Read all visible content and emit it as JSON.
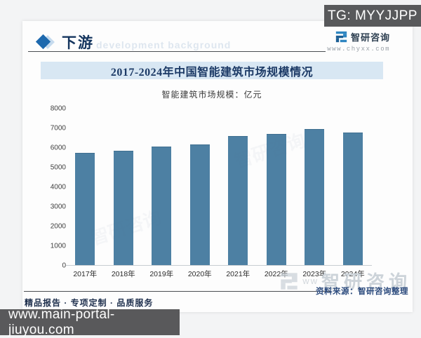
{
  "page": {
    "tg_badge": "TG: MYYJJPP",
    "url_overlay": "www.main-portal-jiuyou.com"
  },
  "header": {
    "section_title": "下游",
    "watermark_text": "development background"
  },
  "brand": {
    "name": "智研咨询",
    "website": "www.chyxx.com"
  },
  "chart_data": {
    "type": "bar",
    "title": "2017-2024年中国智能建筑市场规模情况",
    "legend": "智能建筑市场规模：亿元",
    "unit": "亿元",
    "categories": [
      "2017年",
      "2018年",
      "2019年",
      "2020年",
      "2021年",
      "2022年",
      "2023年",
      "2024年"
    ],
    "values": [
      5700,
      5820,
      6040,
      6140,
      6570,
      6680,
      6930,
      6750
    ],
    "ylim": [
      0,
      8000
    ],
    "yticks": [
      0,
      1000,
      2000,
      3000,
      4000,
      5000,
      6000,
      7000,
      8000
    ],
    "grid": false,
    "legend_position": "top",
    "bar_color": "#4d80a3"
  },
  "footer": {
    "tagline": "精品报告 · 专项定制 · 品质服务",
    "source": "资料来源：智研咨询整理",
    "watermark_www": "ww",
    "watermark_brand": "智研咨询"
  },
  "theme": {
    "accent_blue": "#1d69ae",
    "title_navy": "#1c3a66",
    "band_blue": "#d8e7f3",
    "bar_blue": "#4d80a3",
    "badge_gray": "#58595b"
  }
}
